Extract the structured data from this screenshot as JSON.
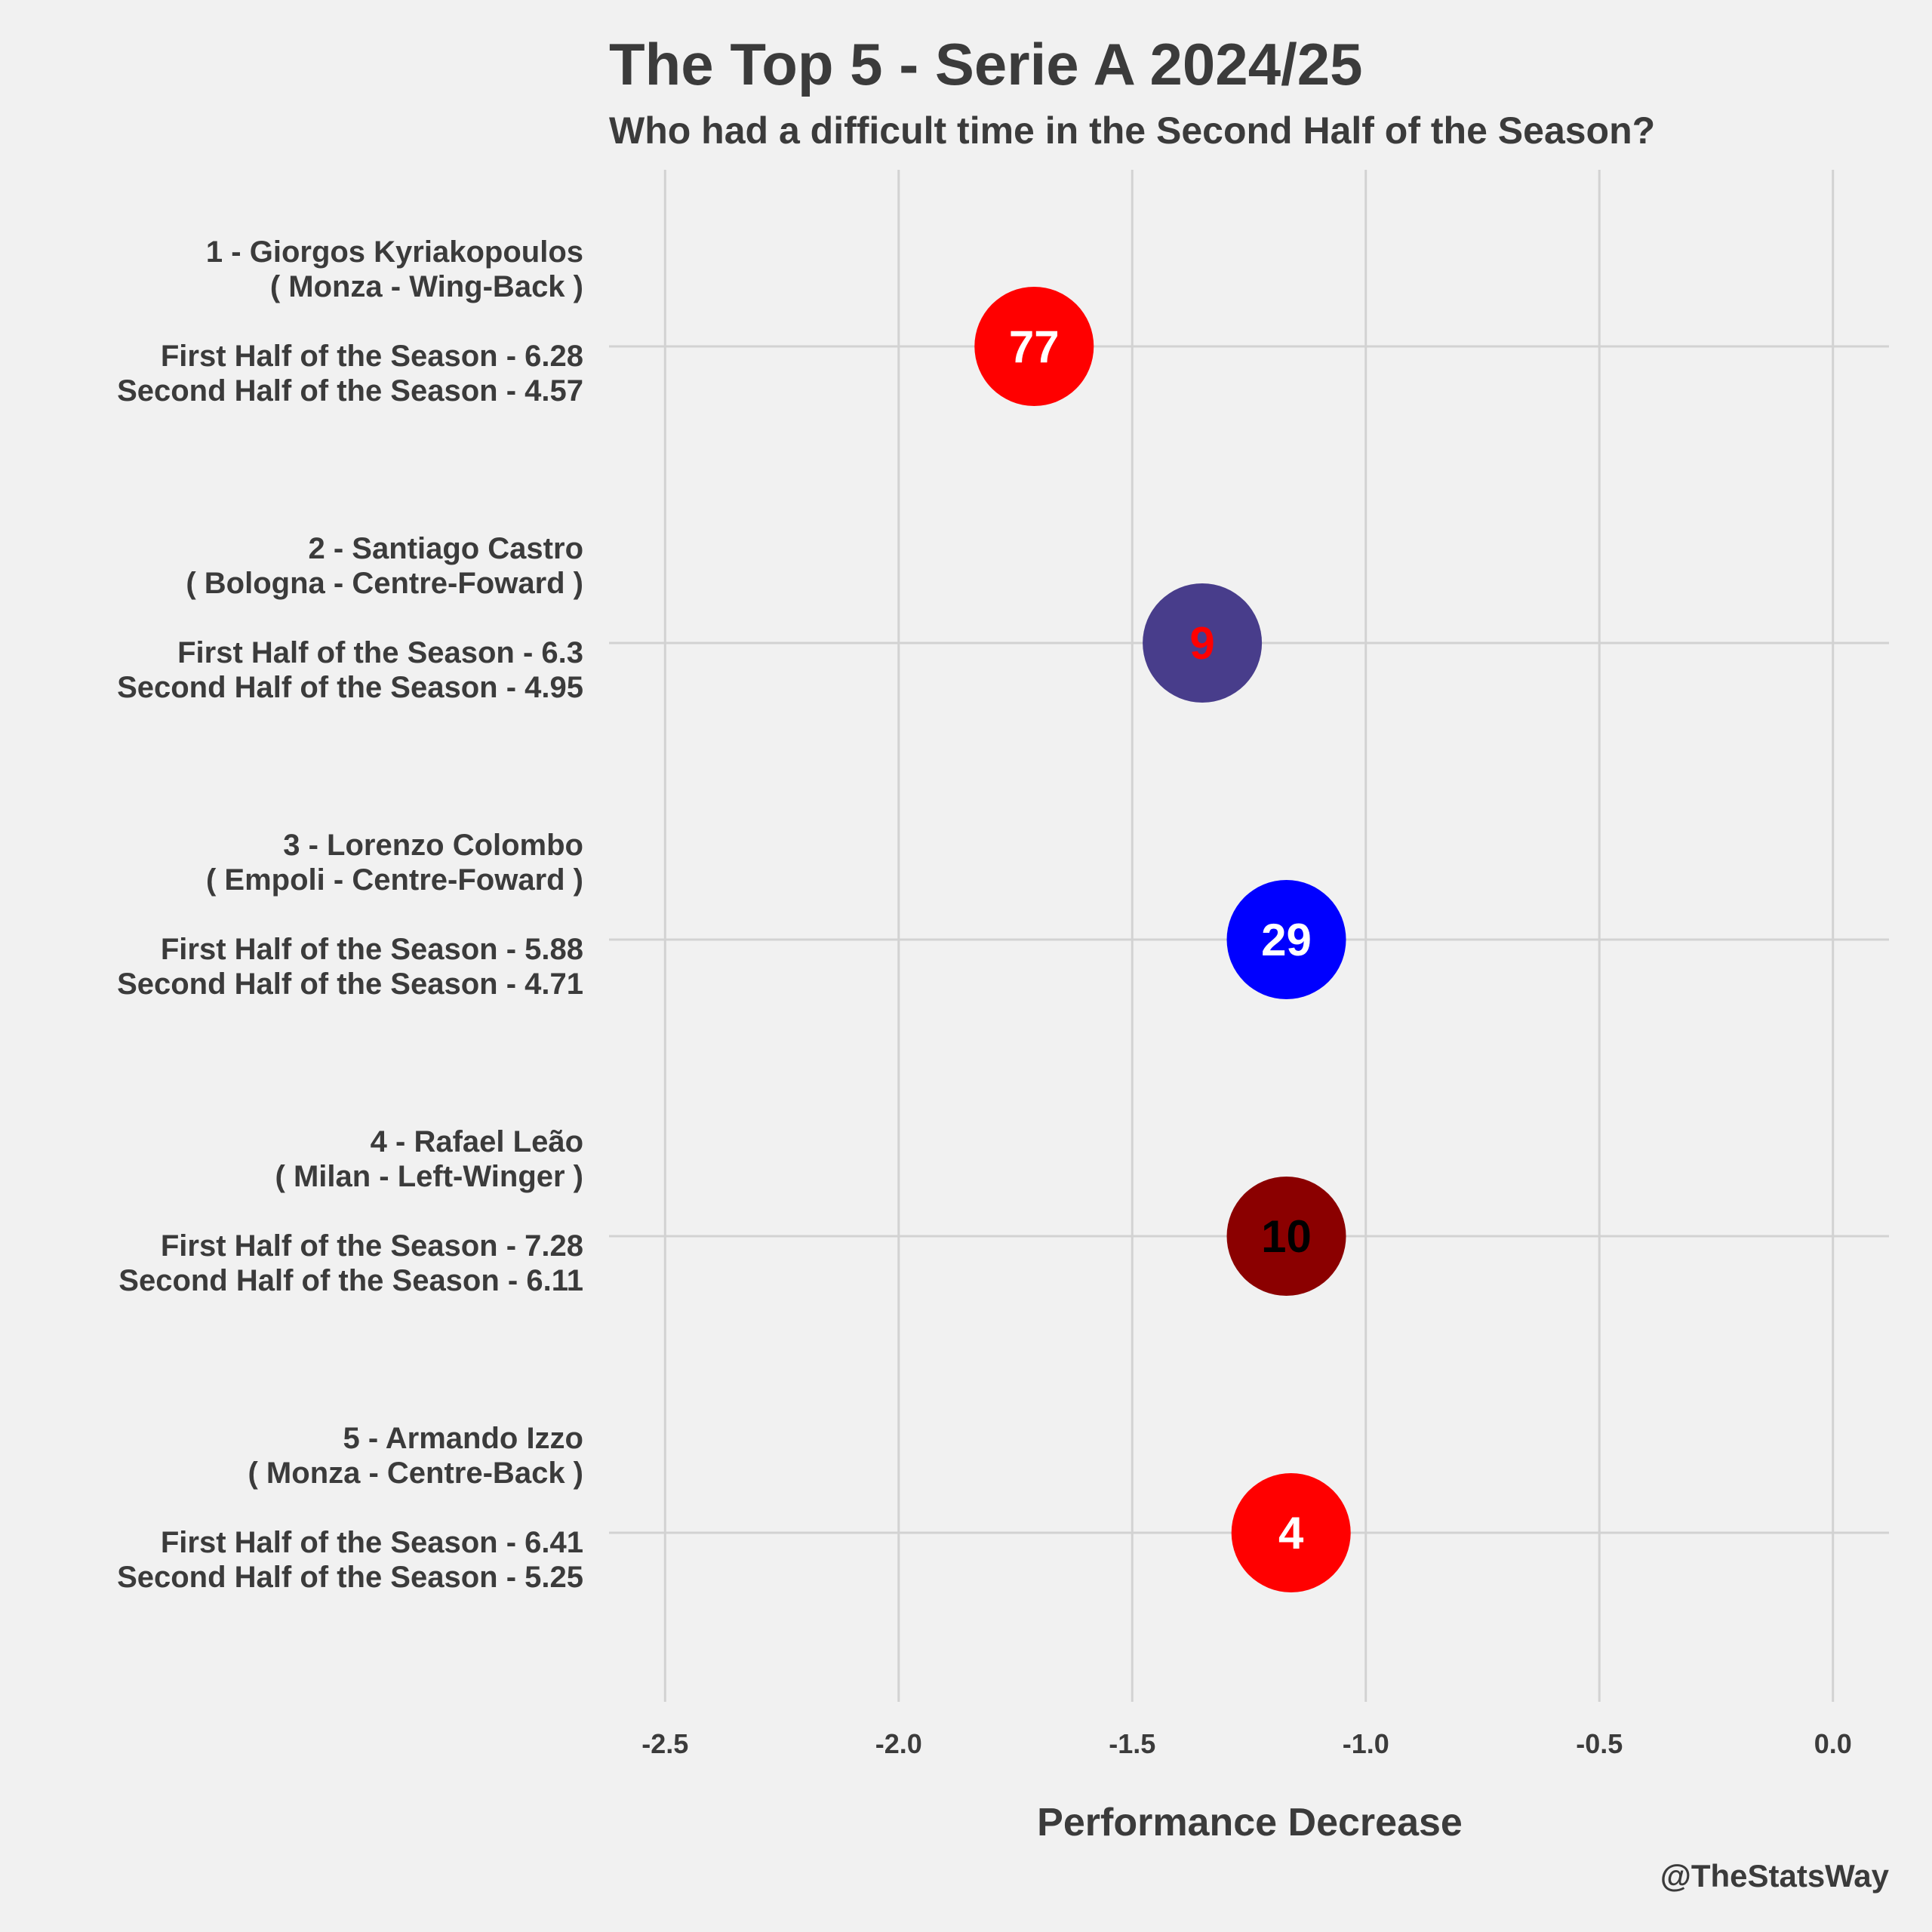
{
  "chart_data": {
    "type": "scatter",
    "title": "The Top 5 - Serie A 2024/25",
    "subtitle": "Who had a difficult time in the Second Half of the Season?",
    "xlabel": "Performance Decrease",
    "ylabel": "",
    "credit": "@TheStatsWay",
    "xlim": [
      -2.62,
      0.12
    ],
    "xticks": [
      -2.5,
      -2.0,
      -1.5,
      -1.0,
      -0.5,
      0.0
    ],
    "xtick_labels": [
      "-2.5",
      "-2.0",
      "-1.5",
      "-1.0",
      "-0.5",
      "0.0"
    ],
    "grid": true,
    "legend": "none",
    "players": [
      {
        "rank_name": "1 - Giorgos Kyriakopoulos",
        "team_role": "( Monza - Wing-Back )",
        "first_half": "First Half of the Season - 6.28",
        "second_half": "Second Half of the Season - 4.57",
        "value": -1.71,
        "number": "77",
        "color": "#ff0000",
        "text_color": "#ffffff"
      },
      {
        "rank_name": "2 - Santiago Castro",
        "team_role": "( Bologna - Centre-Foward )",
        "first_half": "First Half of the Season - 6.3",
        "second_half": "Second Half of the Season - 4.95",
        "value": -1.35,
        "number": "9",
        "color": "#483d8b",
        "text_color": "#ff0000"
      },
      {
        "rank_name": "3 - Lorenzo Colombo",
        "team_role": "( Empoli - Centre-Foward )",
        "first_half": "First Half of the Season - 5.88",
        "second_half": "Second Half of the Season - 4.71",
        "value": -1.17,
        "number": "29",
        "color": "#0000ff",
        "text_color": "#ffffff"
      },
      {
        "rank_name": "4 - Rafael Leão",
        "team_role": "( Milan - Left-Winger )",
        "first_half": "First Half of the Season - 7.28",
        "second_half": "Second Half of the Season - 6.11",
        "value": -1.17,
        "number": "10",
        "color": "#8b0000",
        "text_color": "#000000"
      },
      {
        "rank_name": "5 - Armando Izzo",
        "team_role": "( Monza - Centre-Back )",
        "first_half": "First Half of the Season - 6.41",
        "second_half": "Second Half of the Season - 5.25",
        "value": -1.16,
        "number": "4",
        "color": "#ff0000",
        "text_color": "#ffffff"
      }
    ]
  }
}
